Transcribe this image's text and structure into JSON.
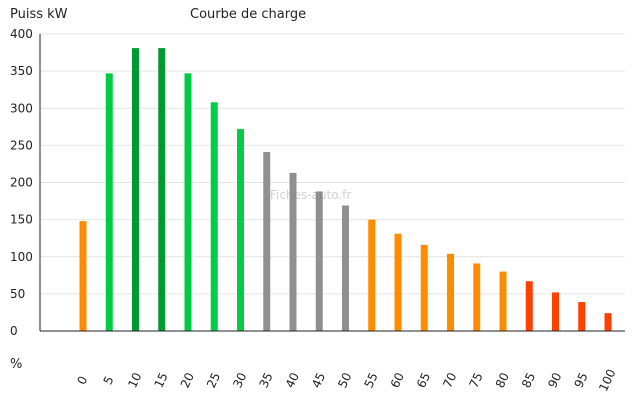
{
  "chart_data": {
    "type": "bar",
    "title": "Courbe de charge",
    "ylabel": "Puiss kW",
    "xlabel": "%",
    "watermark": "Fiches-auto.fr",
    "ylim": [
      0,
      400
    ],
    "yticks": [
      0,
      50,
      100,
      150,
      200,
      250,
      300,
      350,
      400
    ],
    "grid": true,
    "categories": [
      "0",
      "5",
      "10",
      "15",
      "20",
      "25",
      "30",
      "35",
      "40",
      "45",
      "50",
      "55",
      "60",
      "65",
      "70",
      "75",
      "80",
      "85",
      "90",
      "95",
      "100"
    ],
    "values": [
      148,
      347,
      381,
      381,
      347,
      308,
      272,
      241,
      213,
      188,
      169,
      150,
      131,
      116,
      104,
      91,
      80,
      67,
      52,
      39,
      24
    ],
    "bar_colors": [
      "#ff8c00",
      "#00cc44",
      "#009933",
      "#009933",
      "#00cc44",
      "#00cc44",
      "#00cc44",
      "#909090",
      "#909090",
      "#909090",
      "#909090",
      "#ff8c00",
      "#ff8c00",
      "#ff8c00",
      "#ff8c00",
      "#ff8c00",
      "#ff8c00",
      "#ff4000",
      "#ff4000",
      "#ff4000",
      "#ff4000"
    ]
  }
}
